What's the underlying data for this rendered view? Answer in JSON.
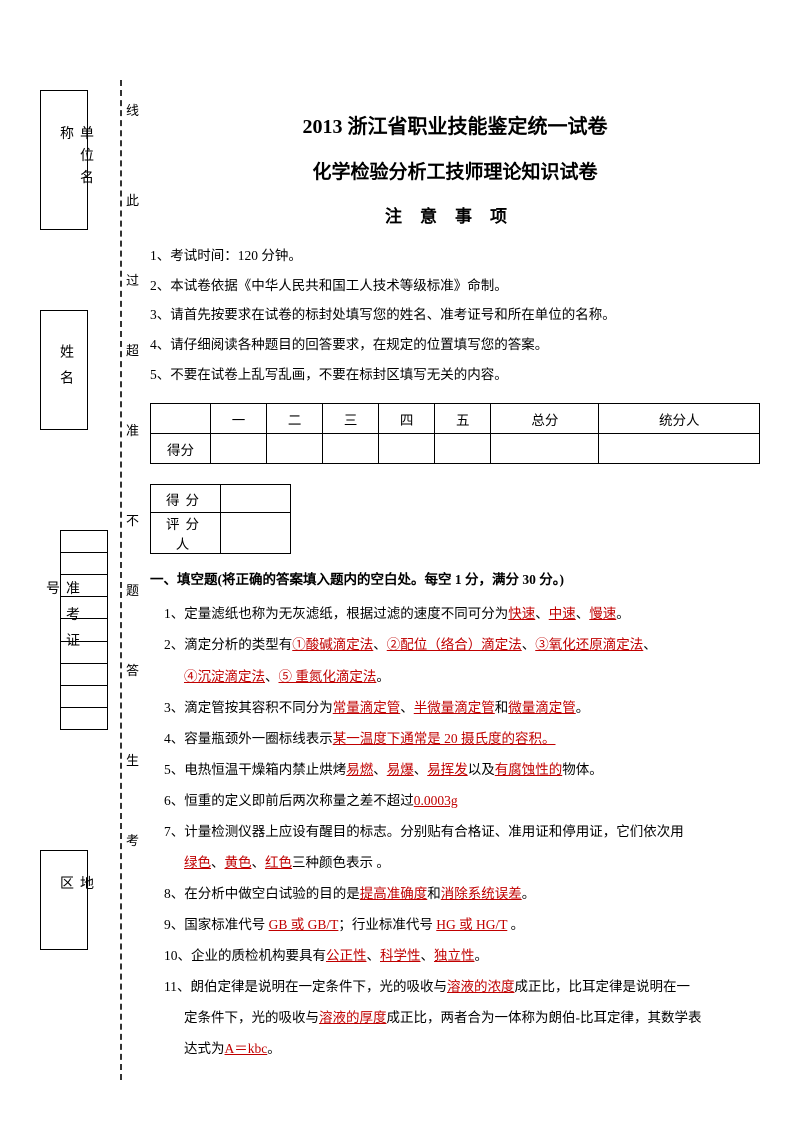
{
  "title": "2013 浙江省职业技能鉴定统一试卷",
  "subtitle": "化学检验分析工技师理论知识试卷",
  "attention_header": "注意事项",
  "sidebar_labels": {
    "unit": "单位名称",
    "name": "姓名",
    "cert": "准考证号",
    "region": "地区"
  },
  "vmarkers": [
    "线",
    "此",
    "过",
    "超",
    "准",
    "不",
    "题",
    "答",
    "生",
    "考"
  ],
  "instructions": [
    "1、考试时间：120 分钟。",
    "2、本试卷依据《中华人民共和国工人技术等级标准》命制。",
    "3、请首先按要求在试卷的标封处填写您的姓名、准考证号和所在单位的名称。",
    "4、请仔细阅读各种题目的回答要求，在规定的位置填写您的答案。",
    "5、不要在试卷上乱写乱画，不要在标封区填写无关的内容。"
  ],
  "score_table": {
    "headers": [
      "",
      "一",
      "二",
      "三",
      "四",
      "五",
      "总分",
      "统分人"
    ],
    "row_label": "得分"
  },
  "small_table": {
    "r1": "得分",
    "r2": "评分人"
  },
  "section_title": "一、填空题(将正确的答案填入题内的空白处。每空 1 分，满分 30 分。)",
  "items": [
    {
      "pre": "1、定量滤纸也称为无灰滤纸，根据过滤的速度不同可分为",
      "ans": [
        "快速",
        "、",
        "中速",
        "、",
        "慢速"
      ],
      "post": "。"
    },
    {
      "pre": "2、滴定分析的类型有",
      "ans": [
        "①酸碱滴定法",
        "、",
        "②配位（络合）滴定法",
        "、",
        "③氧化还原滴定法",
        "、"
      ],
      "post": ""
    },
    {
      "pre": "",
      "ans": [
        "④沉淀滴定法",
        "、",
        "⑤ 重氮化滴定法"
      ],
      "post": "。",
      "indent": true
    },
    {
      "pre": "3、滴定管按其容积不同分为",
      "ans": [
        "常量滴定管",
        "、",
        "半微量滴定管"
      ],
      "post2": "和",
      "ans2": [
        "微量滴定管"
      ],
      "post": "。"
    },
    {
      "pre": "4、容量瓶颈外一圈标线表示",
      "ans": [
        "某一温度下通常是 20 摄氏度的容积。"
      ],
      "post": ""
    },
    {
      "pre": "5、电热恒温干燥箱内禁止烘烤",
      "ans": [
        "易燃",
        "、",
        "易爆",
        "、",
        "易挥发"
      ],
      "post2": "以及",
      "ans2": [
        "有腐蚀性的"
      ],
      "post": "物体。"
    },
    {
      "pre": "6、恒重的定义即前后两次称量之差不超过",
      "ans": [
        "0.0003g"
      ],
      "post": ""
    },
    {
      "pre": "7、计量检测仪器上应设有醒目的标志。分别贴有合格证、准用证和停用证，它们依次用",
      "ans": [],
      "post": ""
    },
    {
      "pre": "",
      "ans": [
        "绿色",
        "、",
        "黄色",
        "、",
        "红色"
      ],
      "post": "三种颜色表示 。",
      "indent": true
    },
    {
      "pre": "8、在分析中做空白试验的目的是",
      "ans": [
        "提高准确度"
      ],
      "post2": "和",
      "ans2": [
        "消除系统误差"
      ],
      "post": "。"
    },
    {
      "pre": "9、国家标准代号 ",
      "ans": [
        "GB 或 GB/T"
      ],
      "post2": "；行业标准代号 ",
      "ans2": [
        "HG 或 HG/T"
      ],
      "post": " 。"
    },
    {
      "pre": "10、企业的质检机构要具有",
      "ans": [
        "公正性",
        "、",
        "科学性",
        "、",
        "独立性"
      ],
      "post": "。"
    },
    {
      "pre": "11、朗伯定律是说明在一定条件下，光的吸收与",
      "ans": [
        "溶液的浓度"
      ],
      "post": "成正比，比耳定律是说明在一"
    },
    {
      "pre": "定条件下，光的吸收与",
      "ans": [
        "溶液的厚度"
      ],
      "post": "成正比，两者合为一体称为朗伯-比耳定律，其数学表",
      "indent": true
    },
    {
      "pre": "达式为",
      "ans": [
        "A＝kbc"
      ],
      "post": "。",
      "indent": true
    }
  ]
}
